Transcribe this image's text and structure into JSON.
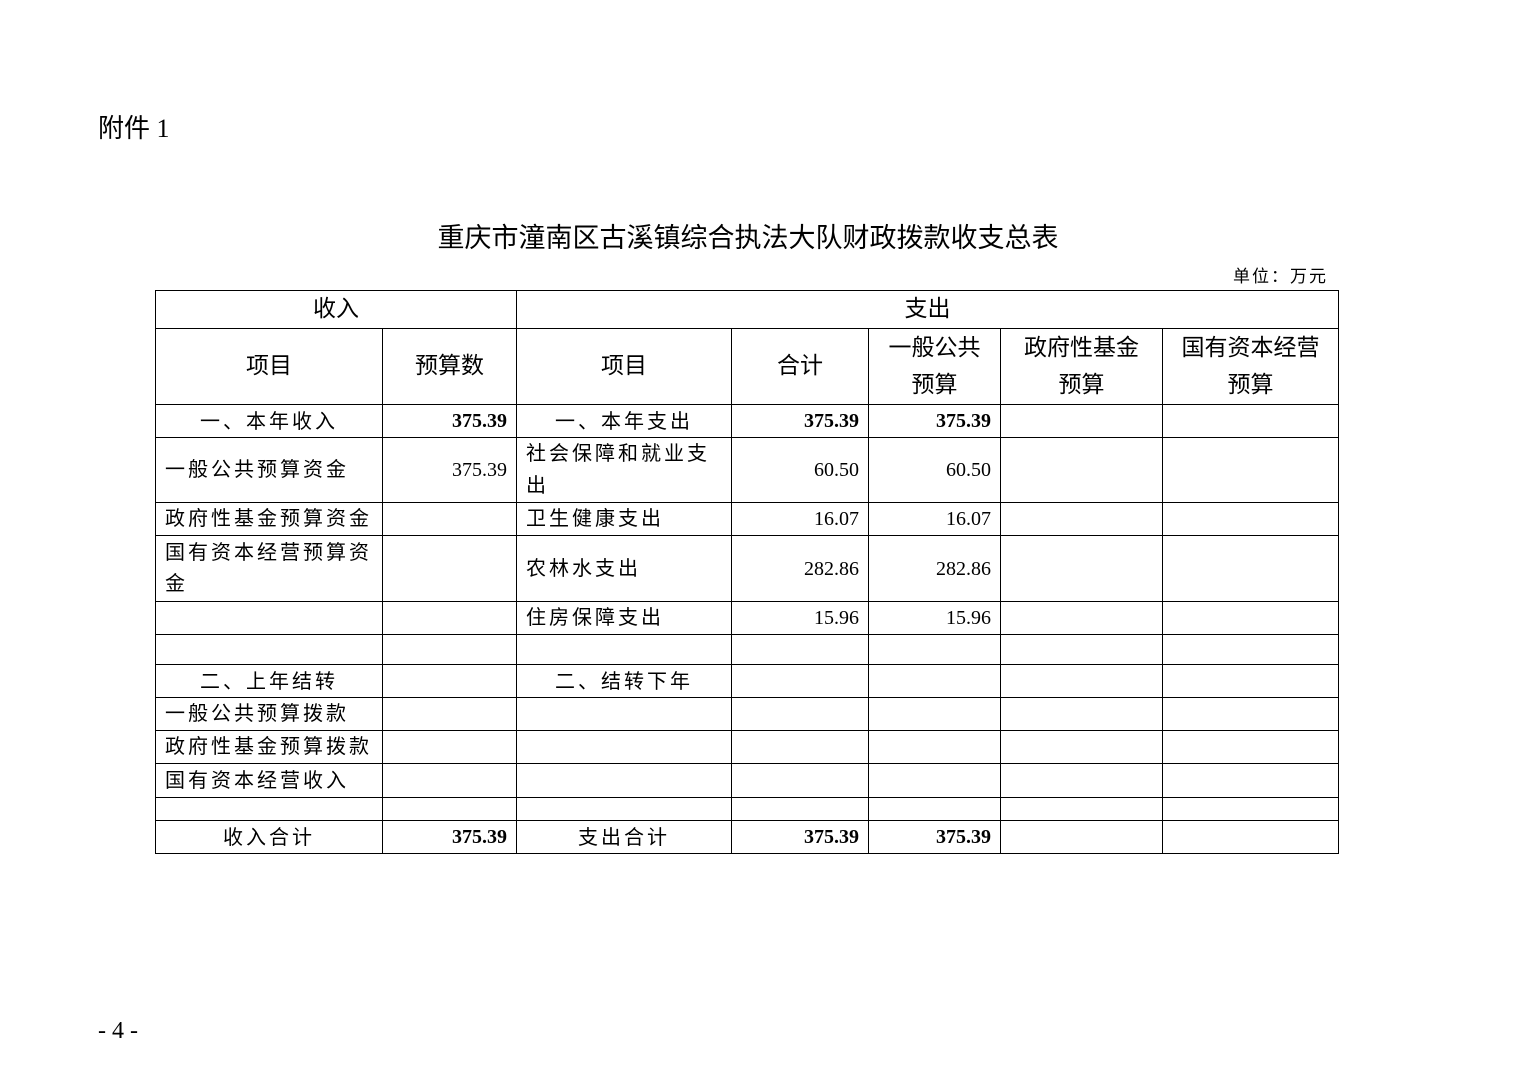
{
  "attachment_label": "附件 1",
  "title": "重庆市潼南区古溪镇综合执法大队财政拨款收支总表",
  "unit": "单位：万元",
  "header": {
    "income": "收入",
    "expense": "支出",
    "income_item": "项目",
    "income_budget": "预算数",
    "expense_item": "项目",
    "total": "合计",
    "general_public_1": "一般公共",
    "general_public_2": "预算",
    "gov_fund_1": "政府性基金",
    "gov_fund_2": "预算",
    "state_capital_1": "国有资本经营",
    "state_capital_2": "预算"
  },
  "rows": [
    {
      "cells": [
        "一、本年收入",
        "375.39",
        "一、本年支出",
        "375.39",
        "375.39",
        "",
        ""
      ],
      "type": "section"
    },
    {
      "cells": [
        "一般公共预算资金",
        "375.39",
        "社会保障和就业支出",
        "60.50",
        "60.50",
        "",
        ""
      ],
      "type": "item"
    },
    {
      "cells": [
        "政府性基金预算资金",
        "",
        "卫生健康支出",
        "16.07",
        "16.07",
        "",
        ""
      ],
      "type": "item"
    },
    {
      "cells": [
        "国有资本经营预算资金",
        "",
        "农林水支出",
        "282.86",
        "282.86",
        "",
        ""
      ],
      "type": "item"
    },
    {
      "cells": [
        "",
        "",
        "住房保障支出",
        "15.96",
        "15.96",
        "",
        ""
      ],
      "type": "item"
    },
    {
      "cells": [
        "",
        "",
        "",
        "",
        "",
        "",
        ""
      ],
      "type": "item"
    },
    {
      "cells": [
        "二、上年结转",
        "",
        "二、结转下年",
        "",
        "",
        "",
        ""
      ],
      "type": "section"
    },
    {
      "cells": [
        "一般公共预算拨款",
        "",
        "",
        "",
        "",
        "",
        ""
      ],
      "type": "item"
    },
    {
      "cells": [
        "政府性基金预算拨款",
        "",
        "",
        "",
        "",
        "",
        ""
      ],
      "type": "item"
    },
    {
      "cells": [
        "国有资本经营收入",
        "",
        "",
        "",
        "",
        "",
        ""
      ],
      "type": "item"
    },
    {
      "cells": [
        "",
        "",
        "",
        "",
        "",
        "",
        ""
      ],
      "type": "item"
    },
    {
      "cells": [
        "收入合计",
        "375.39",
        "支出合计",
        "375.39",
        "375.39",
        "",
        ""
      ],
      "type": "total"
    }
  ],
  "page_number": "- 4 -"
}
